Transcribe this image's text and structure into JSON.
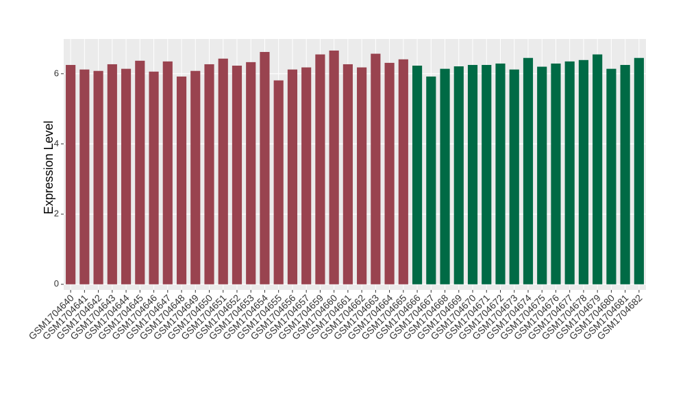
{
  "chart_data": {
    "type": "bar",
    "y_label": "Expression Level",
    "categories": [
      "GSM1704640",
      "GSM1704641",
      "GSM1704642",
      "GSM1704643",
      "GSM1704644",
      "GSM1704645",
      "GSM1704646",
      "GSM1704647",
      "GSM1704648",
      "GSM1704649",
      "GSM1704650",
      "GSM1704651",
      "GSM1704652",
      "GSM1704653",
      "GSM1704654",
      "GSM1704655",
      "GSM1704656",
      "GSM1704657",
      "GSM1704659",
      "GSM1704660",
      "GSM1704661",
      "GSM1704662",
      "GSM1704663",
      "GSM1704664",
      "GSM1704665",
      "GSM1704666",
      "GSM1704667",
      "GSM1704668",
      "GSM1704669",
      "GSM1704670",
      "GSM1704671",
      "GSM1704672",
      "GSM1704673",
      "GSM1704674",
      "GSM1704675",
      "GSM1704676",
      "GSM1704677",
      "GSM1704678",
      "GSM1704679",
      "GSM1704680",
      "GSM1704681",
      "GSM1704682"
    ],
    "values": [
      6.25,
      6.12,
      6.08,
      6.27,
      6.14,
      6.37,
      6.06,
      6.35,
      5.92,
      6.08,
      6.27,
      6.43,
      6.23,
      6.33,
      6.62,
      5.81,
      6.12,
      6.18,
      6.55,
      6.66,
      6.27,
      6.18,
      6.57,
      6.31,
      6.41,
      6.23,
      5.92,
      6.14,
      6.21,
      6.25,
      6.25,
      6.29,
      6.12,
      6.45,
      6.2,
      6.29,
      6.35,
      6.39,
      6.55,
      6.14,
      6.25,
      6.45
    ],
    "colors": [
      "#99434f",
      "#99434f",
      "#99434f",
      "#99434f",
      "#99434f",
      "#99434f",
      "#99434f",
      "#99434f",
      "#99434f",
      "#99434f",
      "#99434f",
      "#99434f",
      "#99434f",
      "#99434f",
      "#99434f",
      "#99434f",
      "#99434f",
      "#99434f",
      "#99434f",
      "#99434f",
      "#99434f",
      "#99434f",
      "#99434f",
      "#99434f",
      "#99434f",
      "#006a45",
      "#006a45",
      "#006a45",
      "#006a45",
      "#006a45",
      "#006a45",
      "#006a45",
      "#006a45",
      "#006a45",
      "#006a45",
      "#006a45",
      "#006a45",
      "#006a45",
      "#006a45",
      "#006a45",
      "#006a45",
      "#006a45"
    ],
    "ylim": [
      -0.16,
      6.99
    ],
    "yticks": [
      0,
      2,
      4,
      6
    ],
    "grid": true
  }
}
